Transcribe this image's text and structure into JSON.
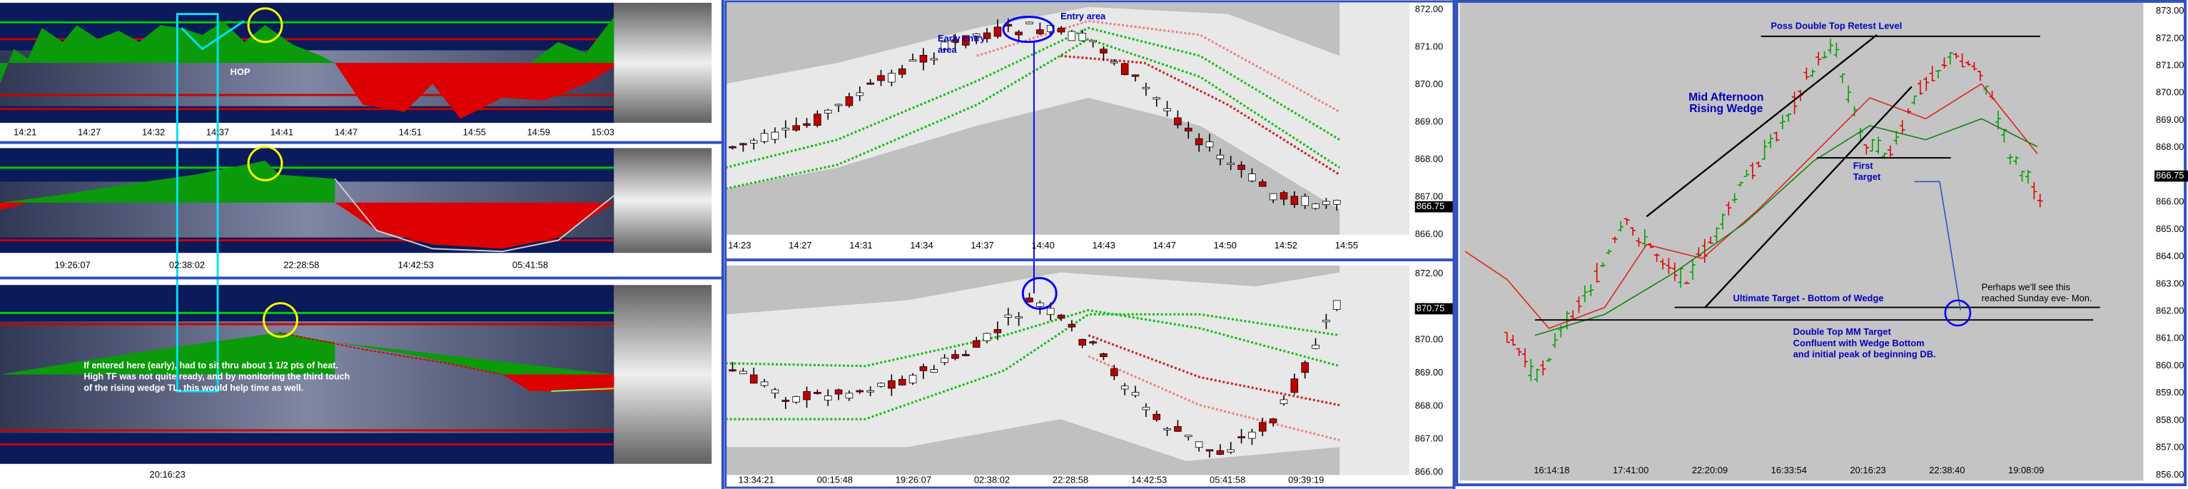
{
  "left_panel": {
    "top": {
      "x_labels": [
        "14:21",
        "14:27",
        "14:32",
        "14:37",
        "14:41",
        "14:47",
        "14:51",
        "14:55",
        "14:59",
        "15:03"
      ],
      "annotation": "HOP"
    },
    "middle": {
      "x_labels": [
        "19:26:07",
        "02:38:02",
        "22:28:58",
        "14:42:53",
        "05:41:58"
      ]
    },
    "bottom": {
      "x_labels": [
        "20:16:23"
      ],
      "note": [
        "If entered here (early), had to sit thru about 1 1/2 pts of heat.",
        "High TF was not quite ready, and by monitoring the third touch",
        "of the rising wedge TL, this would help time as well."
      ]
    }
  },
  "center_panel": {
    "top": {
      "y_labels": [
        "872.00",
        "871.00",
        "870.00",
        "869.00",
        "868.00",
        "867.00",
        "866.00"
      ],
      "price_tag": "866.75",
      "x_labels": [
        "14:23",
        "14:27",
        "14:31",
        "14:34",
        "14:37",
        "14:40",
        "14:43",
        "14:47",
        "14:50",
        "14:52",
        "14:55"
      ],
      "annotations": {
        "early_entry": [
          "Early entry",
          "area"
        ],
        "entry": "Entry area"
      }
    },
    "bottom": {
      "y_labels": [
        "872.00",
        "871.00",
        "870.00",
        "869.00",
        "868.00",
        "867.00",
        "866.00"
      ],
      "price_tag": "870.75",
      "x_labels": [
        "13:34:21",
        "00:15:48",
        "19:26:07",
        "02:38:02",
        "22:28:58",
        "14:42:53",
        "05:41:58",
        "09:39:19"
      ]
    }
  },
  "right_panel": {
    "y_labels": [
      "873.00",
      "872.00",
      "871.00",
      "870.00",
      "869.00",
      "868.00",
      "867.00",
      "866.00",
      "865.00",
      "864.00",
      "863.00",
      "862.00",
      "861.00",
      "860.00",
      "859.00",
      "858.00",
      "857.00",
      "856.00"
    ],
    "price_tag": "866.75",
    "x_labels": [
      "16:14:18",
      "17:41:00",
      "22:20:09",
      "16:33:54",
      "20:16:23",
      "22:38:40",
      "19:08:09"
    ],
    "annotations": {
      "retest": "Poss Double Top Retest Level",
      "wedge": [
        "Mid Afternoon",
        "Rising Wedge"
      ],
      "first_target": [
        "First",
        "Target"
      ],
      "ultimate": "Ultimate Target - Bottom of Wedge",
      "perhaps": [
        "Perhaps we'll see this",
        "reached Sunday eve- Mon."
      ],
      "double_top": [
        "Double Top  MM Target",
        "Confluent with Wedge Bottom",
        "and initial peak of beginning DB."
      ]
    }
  }
}
